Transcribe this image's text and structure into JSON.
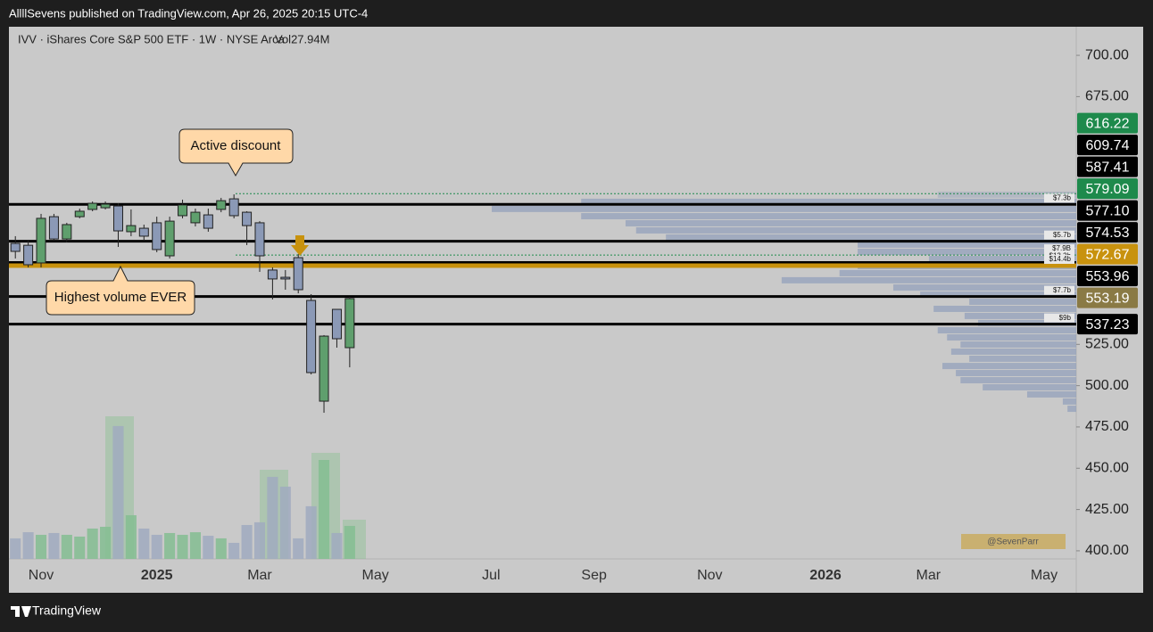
{
  "header": {
    "publisher": "AllllSevens published on TradingView.com, Apr 26, 2025 20:15 UTC-4",
    "brand": "TradingView"
  },
  "chart_data": {
    "type": "candlestick",
    "symbol": "IVV · iShares Core S&P 500 ETF · 1W · NYSE Arca",
    "volume_label": "Vol27.94M",
    "categories": [
      null,
      null,
      "Nov",
      null,
      null,
      null,
      null,
      null,
      null,
      null,
      null,
      "2025",
      null,
      null,
      null,
      null,
      null,
      null,
      null,
      "Mar",
      null,
      null,
      null,
      null,
      null,
      null,
      null,
      null,
      "May",
      null,
      null,
      null,
      null,
      null,
      null,
      null,
      null,
      "Jul",
      null,
      null,
      null,
      null,
      null,
      null,
      null,
      "Sep",
      null,
      null,
      null,
      null,
      null,
      null,
      null,
      null,
      "Nov",
      null,
      null,
      null,
      null,
      null,
      null,
      null,
      null,
      "2026",
      null,
      null,
      null,
      null,
      null,
      null,
      null,
      "Mar",
      null,
      null,
      null,
      null,
      null,
      null,
      null,
      null,
      "May",
      null,
      null
    ],
    "open": [
      586.1,
      585.0,
      574.3,
      602.3,
      588.8,
      602.3,
      606.7,
      607.7,
      608.8,
      593.2,
      595.3,
      598.6,
      578.6,
      602.9,
      598.6,
      603.4,
      606.7,
      613.1,
      605.0,
      598.6,
      570.0,
      565.6,
      577.5,
      551.6,
      490.6,
      546.2,
      523.0,
      null,
      null,
      null,
      null,
      null,
      null,
      null,
      null,
      null,
      null,
      null,
      null,
      null,
      null,
      null,
      null,
      null,
      null,
      null,
      null,
      null,
      null,
      null,
      null,
      null,
      null,
      null,
      null,
      null,
      null,
      null,
      null,
      null,
      null,
      null,
      null,
      null,
      null,
      null,
      null,
      null,
      null,
      null,
      null,
      null,
      null,
      null,
      null,
      null,
      null,
      null,
      null,
      null,
      null,
      null,
      null
    ],
    "high": [
      590.5,
      587.8,
      604.0,
      604.0,
      598.6,
      607.2,
      611.5,
      611.5,
      610.4,
      606.7,
      597.5,
      602.3,
      602.3,
      612.6,
      607.2,
      607.2,
      613.7,
      615.8,
      605.6,
      599.6,
      571.6,
      570.0,
      579.7,
      555.4,
      530.6,
      546.2,
      553.8,
      null,
      null,
      null,
      null,
      null,
      null,
      null,
      null,
      null,
      null,
      null,
      null,
      null,
      null,
      null,
      null,
      null,
      null,
      null,
      null,
      null,
      null,
      null,
      null,
      null,
      null,
      null,
      null,
      null,
      null,
      null,
      null,
      null,
      null,
      null,
      null,
      null,
      null,
      null,
      null,
      null,
      null,
      null,
      null,
      null,
      null,
      null,
      null,
      null,
      null,
      null,
      null,
      null,
      null,
      null,
      null
    ],
    "low": [
      577.0,
      571.6,
      571.6,
      587.8,
      586.7,
      601.3,
      605.6,
      606.7,
      584.0,
      590.5,
      587.8,
      580.8,
      577.0,
      601.3,
      596.4,
      593.2,
      605.0,
      601.3,
      585.1,
      568.9,
      552.2,
      558.1,
      555.9,
      506.8,
      483.6,
      523.0,
      511.1,
      null,
      null,
      null,
      null,
      null,
      null,
      null,
      null,
      null,
      null,
      null,
      null,
      null,
      null,
      null,
      null,
      null,
      null,
      null,
      null,
      null,
      null,
      null,
      null,
      null,
      null,
      null,
      null,
      null,
      null,
      null,
      null,
      null,
      null,
      null,
      null,
      null,
      null,
      null,
      null,
      null,
      null,
      null,
      null,
      null,
      null,
      null,
      null,
      null,
      null,
      null,
      null,
      null,
      null,
      null,
      null
    ],
    "close": [
      581.3,
      573.2,
      601.3,
      588.8,
      597.5,
      605.6,
      610.4,
      609.9,
      593.7,
      596.9,
      590.5,
      582.4,
      599.6,
      609.4,
      605.0,
      595.3,
      612.0,
      602.9,
      596.9,
      578.6,
      564.6,
      564.6,
      558.1,
      507.9,
      530.0,
      528.4,
      552.7,
      null,
      null,
      null,
      null,
      null,
      null,
      null,
      null,
      null,
      null,
      null,
      null,
      null,
      null,
      null,
      null,
      null,
      null,
      null,
      null,
      null,
      null,
      null,
      null,
      null,
      null,
      null,
      null,
      null,
      null,
      null,
      null,
      null,
      null,
      null,
      null,
      null,
      null,
      null,
      null,
      null,
      null,
      null,
      null,
      null,
      null,
      null,
      null,
      null,
      null,
      null,
      null,
      null,
      null,
      null,
      null
    ],
    "volume": [
      17.4,
      22.6,
      20.4,
      21.9,
      20.4,
      18.9,
      25.7,
      27.2,
      112.5,
      37.0,
      25.7,
      20.4,
      21.9,
      20.4,
      22.6,
      19.6,
      17.4,
      13.6,
      28.7,
      31.0,
      69.5,
      61.2,
      17.4,
      44.6,
      83.8,
      21.9,
      27.94,
      null,
      null,
      null,
      null,
      null,
      null,
      null,
      null,
      null,
      null,
      null,
      null,
      null,
      null,
      null,
      null,
      null,
      null,
      null,
      null,
      null,
      null,
      null,
      null,
      null,
      null,
      null,
      null,
      null,
      null,
      null,
      null,
      null,
      null,
      null,
      null,
      null,
      null,
      null,
      null,
      null,
      null,
      null,
      null,
      null,
      null,
      null,
      null,
      null,
      null,
      null,
      null,
      null,
      null,
      null,
      null
    ],
    "up_color": "#5f9f6d",
    "down_color": "#8b99b6",
    "volume_up_color": "#84bd92",
    "volume_down_color": "#a0aac0",
    "ylim": [
      395.1,
      717.3
    ],
    "volume_ylim": [
      0,
      151
    ],
    "yticks": [
      {
        "value": 700,
        "label": "700.00"
      },
      {
        "value": 675,
        "label": "675.00"
      },
      {
        "value": 525,
        "label": "525.00"
      },
      {
        "value": 500,
        "label": "500.00"
      },
      {
        "value": 475,
        "label": "475.00"
      },
      {
        "value": 450,
        "label": "450.00"
      },
      {
        "value": 425,
        "label": "425.00"
      },
      {
        "value": 400,
        "label": "400.00"
      }
    ],
    "price_labels": [
      {
        "value": 616.22,
        "label": "616.22",
        "color": "#1e8a4c",
        "line": "dotted"
      },
      {
        "value": 609.74,
        "label": "609.74",
        "color": "#000000",
        "line": "solid",
        "tag": "$7.3b"
      },
      {
        "value": 587.41,
        "label": "587.41",
        "color": "#000000",
        "line": "solid",
        "tag": "$5.7b"
      },
      {
        "value": 579.09,
        "label": "579.09",
        "color": "#1e8a4c",
        "line": "dotted",
        "tag": "$7.9B"
      },
      {
        "value": 577.1,
        "label": "577.10",
        "color": "#000000"
      },
      {
        "value": 574.53,
        "label": "574.53",
        "color": "#000000",
        "line": "solid",
        "tag": "$13.2b"
      },
      {
        "value": 572.67,
        "label": "572.67",
        "color": "#c8920e",
        "line": "solid",
        "tag": "$14.4b"
      },
      {
        "value": 553.96,
        "label": "553.96",
        "color": "#000000",
        "line": "solid",
        "tag": "$7.7b"
      },
      {
        "value": 553.19,
        "label": "553.19",
        "color": "#8a7a45"
      },
      {
        "value": 537.23,
        "label": "537.23",
        "color": "#000000",
        "line": "solid",
        "tag": "$9b"
      }
    ],
    "volume_profile": {
      "color": "#93a0bb",
      "xlim": [
        0,
        100
      ],
      "prices": [
        615.6,
        611.3,
        607.0,
        602.6,
        598.3,
        594.0,
        589.7,
        585.4,
        581.0,
        576.7,
        572.4,
        568.1,
        563.8,
        559.4,
        555.1,
        550.8,
        546.5,
        542.2,
        537.9,
        533.5,
        529.2,
        524.9,
        520.6,
        516.3,
        511.9,
        507.6,
        503.3,
        499.0,
        494.7,
        490.4,
        486.0
      ],
      "values": [
        23.7,
        84.7,
        100,
        84.7,
        77.1,
        75.3,
        70.2,
        37.4,
        37.4,
        25.2,
        37.4,
        40.5,
        50.4,
        31.3,
        26.7,
        18.3,
        24.4,
        19.1,
        16.8,
        23.7,
        22.1,
        19.8,
        21.4,
        18.3,
        22.9,
        20.6,
        19.8,
        16.0,
        8.4,
        2.3,
        1.5
      ]
    },
    "annotations": [
      "Active discount",
      "Highest volume EVER"
    ],
    "watermark": "@SevenParr"
  }
}
